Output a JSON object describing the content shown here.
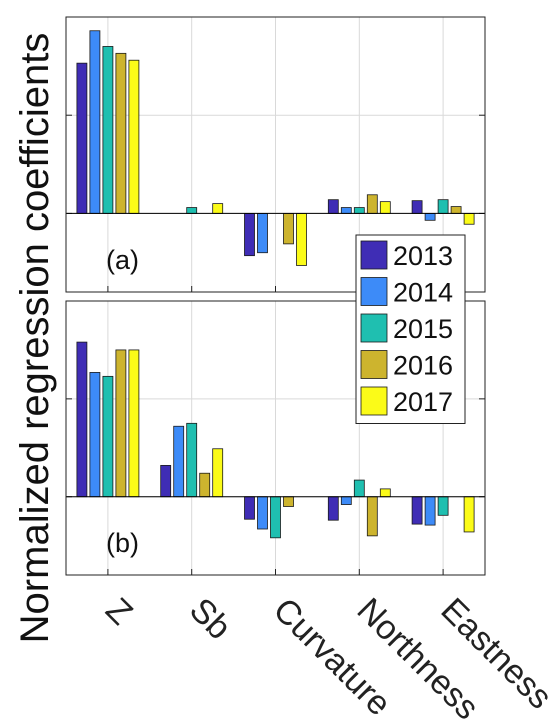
{
  "chart_data": {
    "type": "bar",
    "ylabel": "Normalized regression coefficients",
    "categories": [
      "Z",
      "Sb",
      "Curvature",
      "Northness",
      "Eastness"
    ],
    "legend": {
      "placement": "right, spanning the lower part of panel (a) and the upper part of panel (b)",
      "entries": [
        "2013",
        "2014",
        "2015",
        "2016",
        "2017"
      ]
    },
    "series_colors": [
      "#3f2db5",
      "#3d8bf8",
      "#1fbfb0",
      "#cdb42e",
      "#fbfb18"
    ],
    "grid": true,
    "y_tick_labels_shown": false,
    "panels": [
      {
        "tag": "(a)",
        "ylim": [
          -0.8,
          2.0
        ],
        "series": [
          {
            "name": "2013",
            "values": [
              1.53,
              0.0,
              -0.43,
              0.14,
              0.13
            ]
          },
          {
            "name": "2014",
            "values": [
              1.86,
              0.0,
              -0.4,
              0.06,
              -0.07
            ]
          },
          {
            "name": "2015",
            "values": [
              1.7,
              0.06,
              0.0,
              0.06,
              0.14
            ]
          },
          {
            "name": "2016",
            "values": [
              1.63,
              0.0,
              -0.31,
              0.19,
              0.07
            ]
          },
          {
            "name": "2017",
            "values": [
              1.56,
              0.1,
              -0.53,
              0.12,
              -0.11
            ]
          }
        ]
      },
      {
        "tag": "(b)",
        "ylim": [
          -0.8,
          2.0
        ],
        "series": [
          {
            "name": "2013",
            "values": [
              1.58,
              0.32,
              -0.23,
              -0.24,
              -0.28
            ]
          },
          {
            "name": "2014",
            "values": [
              1.27,
              0.72,
              -0.33,
              -0.08,
              -0.29
            ]
          },
          {
            "name": "2015",
            "values": [
              1.23,
              0.75,
              -0.42,
              0.17,
              -0.19
            ]
          },
          {
            "name": "2016",
            "values": [
              1.5,
              0.24,
              -0.1,
              -0.4,
              0.0
            ]
          },
          {
            "name": "2017",
            "values": [
              1.5,
              0.49,
              0.0,
              0.08,
              -0.36
            ]
          }
        ]
      }
    ]
  }
}
